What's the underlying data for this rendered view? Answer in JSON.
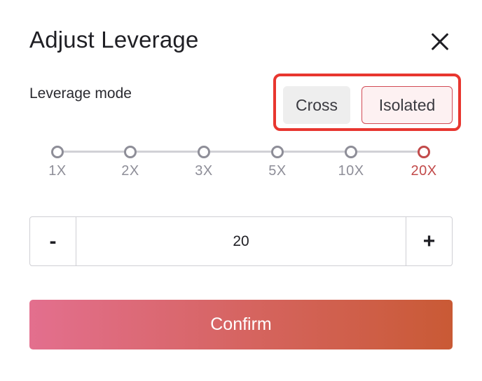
{
  "dialog": {
    "title": "Adjust Leverage",
    "close_icon": "close-icon"
  },
  "leverage_mode": {
    "label": "Leverage mode",
    "options": [
      {
        "label": "Cross",
        "selected": false
      },
      {
        "label": "Isolated",
        "selected": true
      }
    ],
    "highlight_color": "#e8362f"
  },
  "slider": {
    "ticks": [
      {
        "label": "1X",
        "active": false
      },
      {
        "label": "2X",
        "active": false
      },
      {
        "label": "3X",
        "active": false
      },
      {
        "label": "5X",
        "active": false
      },
      {
        "label": "10X",
        "active": false
      },
      {
        "label": "20X",
        "active": true
      }
    ],
    "active_color": "#c24a4a",
    "inactive_color": "#8e8e98"
  },
  "stepper": {
    "minus_label": "-",
    "value": "20",
    "plus_label": "+"
  },
  "confirm": {
    "label": "Confirm",
    "gradient_start": "#e36f8e",
    "gradient_end": "#c95a35"
  }
}
